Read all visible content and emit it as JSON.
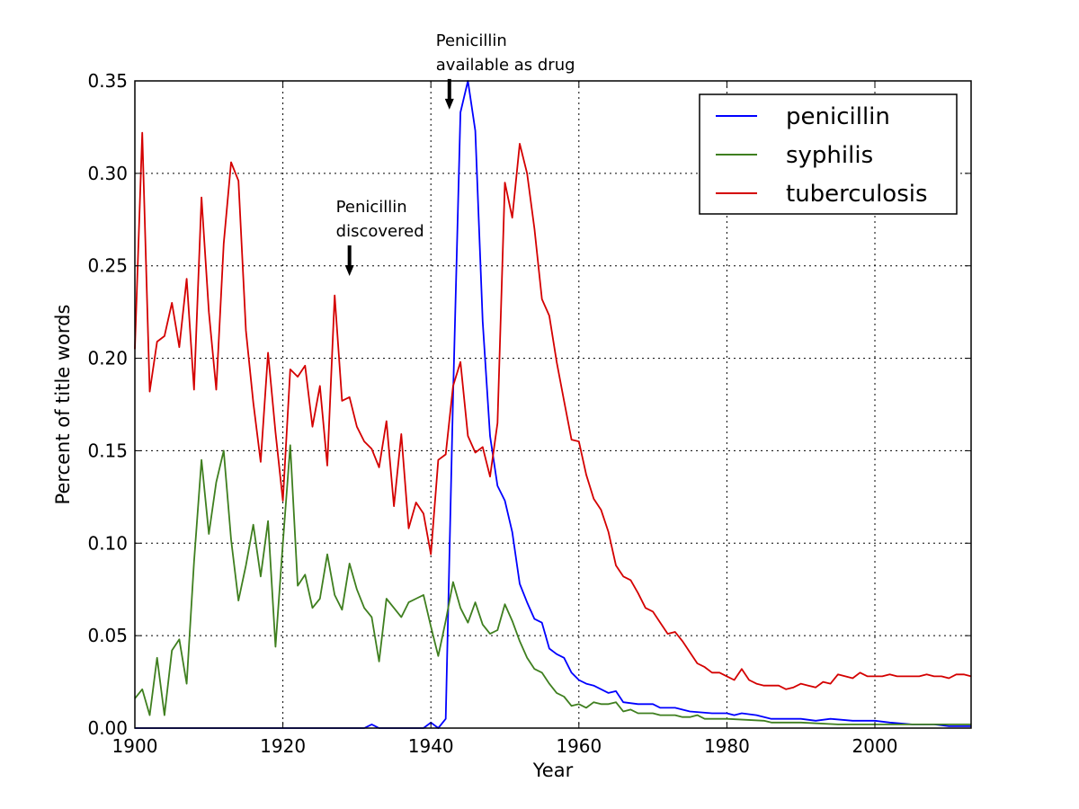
{
  "chart_data": {
    "type": "line",
    "xlabel": "Year",
    "ylabel": "Percent of title words",
    "xlim": [
      1900,
      2013
    ],
    "ylim": [
      0,
      0.35
    ],
    "x_ticks": [
      "1900",
      "1920",
      "1940",
      "1960",
      "1980",
      "2000"
    ],
    "y_ticks": [
      "0.00",
      "0.05",
      "0.10",
      "0.15",
      "0.20",
      "0.25",
      "0.30",
      "0.35"
    ],
    "grid": true,
    "legend_position": "top-right",
    "annotations": [
      {
        "lines": [
          "Penicillin",
          "discovered"
        ],
        "x": 1929,
        "y": 0.262
      },
      {
        "lines": [
          "Penicillin",
          "available as drug"
        ],
        "x": 1942.5,
        "y": 0.352
      }
    ],
    "series": [
      {
        "name": "penicillin",
        "color": "#0000ff",
        "points": [
          [
            1900,
            0
          ],
          [
            1931,
            0
          ],
          [
            1932,
            0.002
          ],
          [
            1933,
            0
          ],
          [
            1938,
            0
          ],
          [
            1939,
            0
          ],
          [
            1940,
            0.003
          ],
          [
            1941,
            0
          ],
          [
            1942,
            0.005
          ],
          [
            1943,
            0.18
          ],
          [
            1944,
            0.333
          ],
          [
            1945,
            0.35
          ],
          [
            1946,
            0.323
          ],
          [
            1947,
            0.22
          ],
          [
            1948,
            0.158
          ],
          [
            1949,
            0.131
          ],
          [
            1950,
            0.123
          ],
          [
            1951,
            0.106
          ],
          [
            1952,
            0.078
          ],
          [
            1953,
            0.068
          ],
          [
            1954,
            0.059
          ],
          [
            1955,
            0.057
          ],
          [
            1956,
            0.043
          ],
          [
            1957,
            0.04
          ],
          [
            1958,
            0.038
          ],
          [
            1959,
            0.03
          ],
          [
            1960,
            0.026
          ],
          [
            1961,
            0.024
          ],
          [
            1962,
            0.023
          ],
          [
            1963,
            0.021
          ],
          [
            1964,
            0.019
          ],
          [
            1965,
            0.02
          ],
          [
            1966,
            0.014
          ],
          [
            1968,
            0.013
          ],
          [
            1970,
            0.013
          ],
          [
            1971,
            0.011
          ],
          [
            1973,
            0.011
          ],
          [
            1975,
            0.009
          ],
          [
            1978,
            0.008
          ],
          [
            1980,
            0.008
          ],
          [
            1981,
            0.007
          ],
          [
            1982,
            0.008
          ],
          [
            1984,
            0.007
          ],
          [
            1986,
            0.005
          ],
          [
            1990,
            0.005
          ],
          [
            1992,
            0.004
          ],
          [
            1994,
            0.005
          ],
          [
            1997,
            0.004
          ],
          [
            2000,
            0.004
          ],
          [
            2002,
            0.003
          ],
          [
            2005,
            0.002
          ],
          [
            2008,
            0.002
          ],
          [
            2010,
            0.001
          ],
          [
            2013,
            0.001
          ]
        ]
      },
      {
        "name": "syphilis",
        "color": "#3f7f1f",
        "points": [
          [
            1900,
            0.016
          ],
          [
            1901,
            0.021
          ],
          [
            1902,
            0.007
          ],
          [
            1903,
            0.038
          ],
          [
            1904,
            0.007
          ],
          [
            1905,
            0.042
          ],
          [
            1906,
            0.048
          ],
          [
            1907,
            0.024
          ],
          [
            1908,
            0.09
          ],
          [
            1909,
            0.145
          ],
          [
            1910,
            0.105
          ],
          [
            1911,
            0.133
          ],
          [
            1912,
            0.15
          ],
          [
            1913,
            0.102
          ],
          [
            1914,
            0.069
          ],
          [
            1915,
            0.088
          ],
          [
            1916,
            0.11
          ],
          [
            1917,
            0.082
          ],
          [
            1918,
            0.112
          ],
          [
            1919,
            0.044
          ],
          [
            1920,
            0.1
          ],
          [
            1921,
            0.153
          ],
          [
            1922,
            0.077
          ],
          [
            1923,
            0.083
          ],
          [
            1924,
            0.065
          ],
          [
            1925,
            0.07
          ],
          [
            1926,
            0.094
          ],
          [
            1927,
            0.072
          ],
          [
            1928,
            0.064
          ],
          [
            1929,
            0.089
          ],
          [
            1930,
            0.075
          ],
          [
            1931,
            0.065
          ],
          [
            1932,
            0.06
          ],
          [
            1933,
            0.036
          ],
          [
            1934,
            0.07
          ],
          [
            1935,
            0.065
          ],
          [
            1936,
            0.06
          ],
          [
            1937,
            0.068
          ],
          [
            1938,
            0.07
          ],
          [
            1939,
            0.072
          ],
          [
            1940,
            0.055
          ],
          [
            1941,
            0.039
          ],
          [
            1942,
            0.058
          ],
          [
            1943,
            0.079
          ],
          [
            1944,
            0.065
          ],
          [
            1945,
            0.057
          ],
          [
            1946,
            0.068
          ],
          [
            1947,
            0.056
          ],
          [
            1948,
            0.051
          ],
          [
            1949,
            0.053
          ],
          [
            1950,
            0.067
          ],
          [
            1951,
            0.058
          ],
          [
            1952,
            0.047
          ],
          [
            1953,
            0.038
          ],
          [
            1954,
            0.032
          ],
          [
            1955,
            0.03
          ],
          [
            1956,
            0.024
          ],
          [
            1957,
            0.019
          ],
          [
            1958,
            0.017
          ],
          [
            1959,
            0.012
          ],
          [
            1960,
            0.013
          ],
          [
            1961,
            0.011
          ],
          [
            1962,
            0.014
          ],
          [
            1963,
            0.013
          ],
          [
            1964,
            0.013
          ],
          [
            1965,
            0.014
          ],
          [
            1966,
            0.009
          ],
          [
            1967,
            0.01
          ],
          [
            1968,
            0.008
          ],
          [
            1970,
            0.008
          ],
          [
            1971,
            0.007
          ],
          [
            1973,
            0.007
          ],
          [
            1974,
            0.006
          ],
          [
            1975,
            0.006
          ],
          [
            1976,
            0.007
          ],
          [
            1977,
            0.005
          ],
          [
            1980,
            0.005
          ],
          [
            1985,
            0.004
          ],
          [
            1986,
            0.003
          ],
          [
            1990,
            0.003
          ],
          [
            1995,
            0.002
          ],
          [
            2000,
            0.002
          ],
          [
            2005,
            0.002
          ],
          [
            2010,
            0.002
          ],
          [
            2013,
            0.002
          ]
        ]
      },
      {
        "name": "tuberculosis",
        "color": "#d40000",
        "points": [
          [
            1900,
            0.205
          ],
          [
            1901,
            0.322
          ],
          [
            1902,
            0.182
          ],
          [
            1903,
            0.209
          ],
          [
            1904,
            0.212
          ],
          [
            1905,
            0.23
          ],
          [
            1906,
            0.206
          ],
          [
            1907,
            0.243
          ],
          [
            1908,
            0.183
          ],
          [
            1909,
            0.287
          ],
          [
            1910,
            0.225
          ],
          [
            1911,
            0.183
          ],
          [
            1912,
            0.262
          ],
          [
            1913,
            0.306
          ],
          [
            1914,
            0.296
          ],
          [
            1915,
            0.215
          ],
          [
            1916,
            0.176
          ],
          [
            1917,
            0.144
          ],
          [
            1918,
            0.203
          ],
          [
            1919,
            0.16
          ],
          [
            1920,
            0.123
          ],
          [
            1921,
            0.194
          ],
          [
            1922,
            0.19
          ],
          [
            1923,
            0.196
          ],
          [
            1924,
            0.163
          ],
          [
            1925,
            0.185
          ],
          [
            1926,
            0.142
          ],
          [
            1927,
            0.234
          ],
          [
            1928,
            0.177
          ],
          [
            1929,
            0.179
          ],
          [
            1930,
            0.163
          ],
          [
            1931,
            0.155
          ],
          [
            1932,
            0.151
          ],
          [
            1933,
            0.141
          ],
          [
            1934,
            0.166
          ],
          [
            1935,
            0.12
          ],
          [
            1936,
            0.159
          ],
          [
            1937,
            0.108
          ],
          [
            1938,
            0.122
          ],
          [
            1939,
            0.116
          ],
          [
            1940,
            0.094
          ],
          [
            1941,
            0.145
          ],
          [
            1942,
            0.148
          ],
          [
            1943,
            0.185
          ],
          [
            1944,
            0.198
          ],
          [
            1945,
            0.158
          ],
          [
            1946,
            0.149
          ],
          [
            1947,
            0.152
          ],
          [
            1948,
            0.136
          ],
          [
            1949,
            0.165
          ],
          [
            1950,
            0.295
          ],
          [
            1951,
            0.276
          ],
          [
            1952,
            0.316
          ],
          [
            1953,
            0.3
          ],
          [
            1954,
            0.27
          ],
          [
            1955,
            0.232
          ],
          [
            1956,
            0.223
          ],
          [
            1957,
            0.198
          ],
          [
            1958,
            0.177
          ],
          [
            1959,
            0.156
          ],
          [
            1960,
            0.155
          ],
          [
            1961,
            0.137
          ],
          [
            1962,
            0.124
          ],
          [
            1963,
            0.118
          ],
          [
            1964,
            0.106
          ],
          [
            1965,
            0.088
          ],
          [
            1966,
            0.082
          ],
          [
            1967,
            0.08
          ],
          [
            1968,
            0.073
          ],
          [
            1969,
            0.065
          ],
          [
            1970,
            0.063
          ],
          [
            1971,
            0.057
          ],
          [
            1972,
            0.051
          ],
          [
            1973,
            0.052
          ],
          [
            1974,
            0.047
          ],
          [
            1975,
            0.041
          ],
          [
            1976,
            0.035
          ],
          [
            1977,
            0.033
          ],
          [
            1978,
            0.03
          ],
          [
            1979,
            0.03
          ],
          [
            1980,
            0.028
          ],
          [
            1981,
            0.026
          ],
          [
            1982,
            0.032
          ],
          [
            1983,
            0.026
          ],
          [
            1984,
            0.024
          ],
          [
            1985,
            0.023
          ],
          [
            1986,
            0.023
          ],
          [
            1987,
            0.023
          ],
          [
            1988,
            0.021
          ],
          [
            1989,
            0.022
          ],
          [
            1990,
            0.024
          ],
          [
            1991,
            0.023
          ],
          [
            1992,
            0.022
          ],
          [
            1993,
            0.025
          ],
          [
            1994,
            0.024
          ],
          [
            1995,
            0.029
          ],
          [
            1996,
            0.028
          ],
          [
            1997,
            0.027
          ],
          [
            1998,
            0.03
          ],
          [
            1999,
            0.028
          ],
          [
            2000,
            0.028
          ],
          [
            2001,
            0.028
          ],
          [
            2002,
            0.029
          ],
          [
            2003,
            0.028
          ],
          [
            2004,
            0.028
          ],
          [
            2005,
            0.028
          ],
          [
            2006,
            0.028
          ],
          [
            2007,
            0.029
          ],
          [
            2008,
            0.028
          ],
          [
            2009,
            0.028
          ],
          [
            2010,
            0.027
          ],
          [
            2011,
            0.029
          ],
          [
            2012,
            0.029
          ],
          [
            2013,
            0.028
          ]
        ]
      }
    ]
  }
}
